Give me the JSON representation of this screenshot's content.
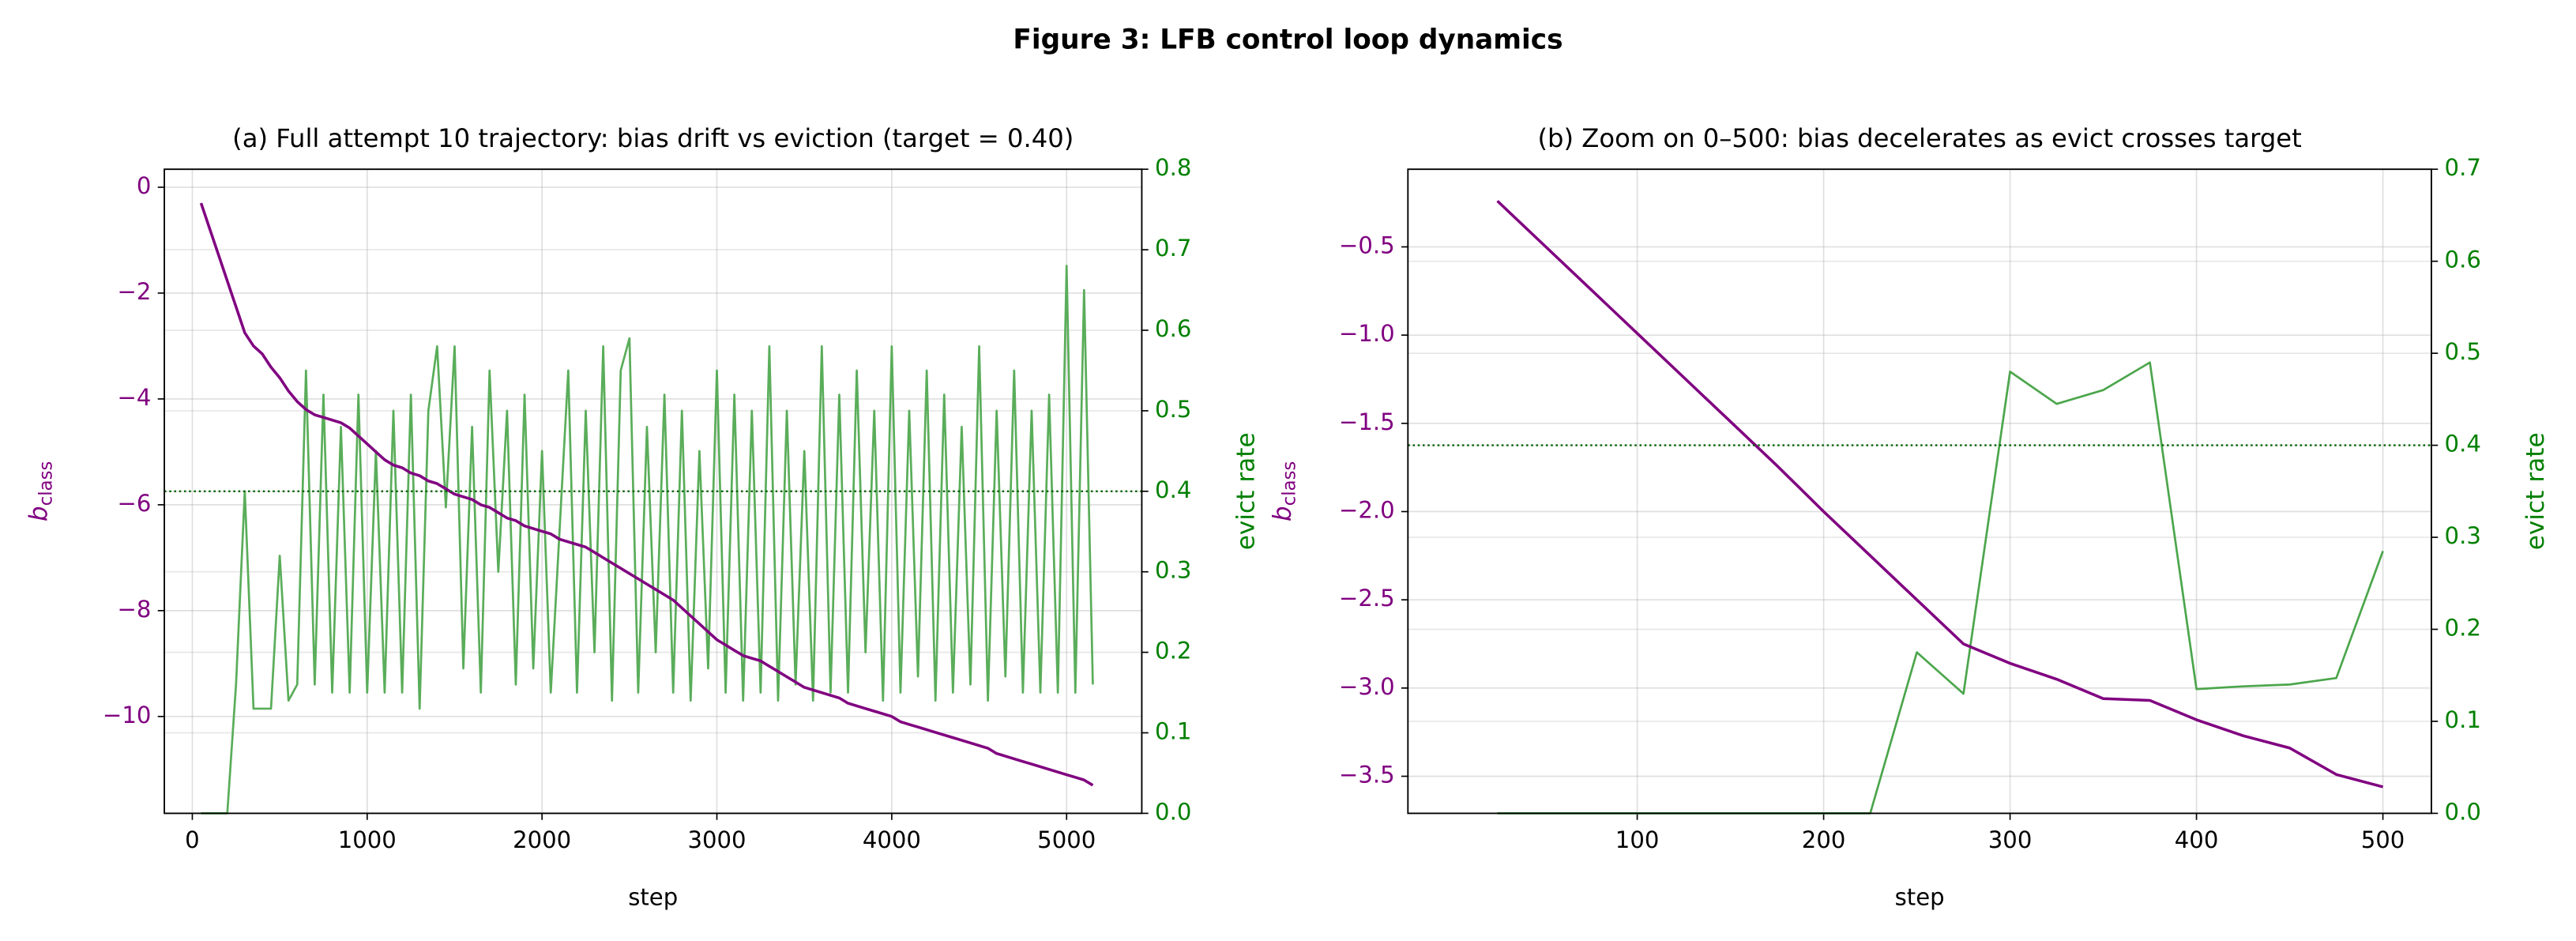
{
  "title": "Figure 3: LFB control loop dynamics",
  "chart_data": [
    {
      "type": "line",
      "title": "(a) Full attempt 10 trajectory: bias drift vs eviction (target = 0.40)",
      "xlabel": "step",
      "ylabel": "b",
      "ylabel_sub": "class",
      "y2label": "evict rate",
      "x": [
        50,
        100,
        150,
        200,
        250,
        300,
        350,
        400,
        450,
        500,
        550,
        600,
        650,
        700,
        750,
        800,
        850,
        900,
        950,
        1000,
        1050,
        1100,
        1150,
        1200,
        1250,
        1300,
        1350,
        1400,
        1450,
        1500,
        1550,
        1600,
        1650,
        1700,
        1750,
        1800,
        1850,
        1900,
        1950,
        2000,
        2050,
        2100,
        2150,
        2200,
        2250,
        2300,
        2350,
        2400,
        2450,
        2500,
        2550,
        2600,
        2650,
        2700,
        2750,
        2800,
        2850,
        2900,
        2950,
        3000,
        3050,
        3100,
        3150,
        3200,
        3250,
        3300,
        3350,
        3400,
        3450,
        3500,
        3550,
        3600,
        3650,
        3700,
        3750,
        3800,
        3850,
        3900,
        3950,
        4000,
        4050,
        4100,
        4150,
        4200,
        4250,
        4300,
        4350,
        4400,
        4450,
        4500,
        4550,
        4600,
        4650,
        4700,
        4750,
        4800,
        4850,
        4900,
        4950,
        5000,
        5050,
        5100,
        5150
      ],
      "series": [
        {
          "color": "#800080",
          "axis": "y",
          "values": [
            -0.3,
            -0.79,
            -1.28,
            -1.77,
            -2.26,
            -2.75,
            -3.0,
            -3.15,
            -3.4,
            -3.6,
            -3.85,
            -4.05,
            -4.2,
            -4.3,
            -4.35,
            -4.4,
            -4.45,
            -4.55,
            -4.7,
            -4.85,
            -5.0,
            -5.15,
            -5.25,
            -5.3,
            -5.4,
            -5.45,
            -5.55,
            -5.6,
            -5.7,
            -5.8,
            -5.85,
            -5.9,
            -6.0,
            -6.05,
            -6.15,
            -6.25,
            -6.3,
            -6.4,
            -6.45,
            -6.5,
            -6.55,
            -6.65,
            -6.7,
            -6.75,
            -6.8,
            -6.9,
            -7.0,
            -7.1,
            -7.2,
            -7.3,
            -7.4,
            -7.5,
            -7.6,
            -7.7,
            -7.8,
            -7.95,
            -8.1,
            -8.25,
            -8.4,
            -8.55,
            -8.65,
            -8.75,
            -8.85,
            -8.9,
            -8.95,
            -9.05,
            -9.15,
            -9.25,
            -9.35,
            -9.45,
            -9.5,
            -9.55,
            -9.6,
            -9.65,
            -9.75,
            -9.8,
            -9.85,
            -9.9,
            -9.95,
            -10.0,
            -10.1,
            -10.15,
            -10.2,
            -10.25,
            -10.3,
            -10.35,
            -10.4,
            -10.45,
            -10.5,
            -10.55,
            -10.6,
            -10.7,
            -10.75,
            -10.8,
            -10.85,
            -10.9,
            -10.95,
            -11.0,
            -11.05,
            -11.1,
            -11.15,
            -11.2,
            -11.3
          ]
        },
        {
          "color": "#5aad5a",
          "axis": "y2",
          "values": [
            0,
            0,
            0,
            0,
            0.16,
            0.4,
            0.13,
            0.13,
            0.13,
            0.32,
            0.14,
            0.16,
            0.55,
            0.16,
            0.52,
            0.15,
            0.48,
            0.15,
            0.52,
            0.15,
            0.45,
            0.15,
            0.5,
            0.15,
            0.52,
            0.13,
            0.5,
            0.58,
            0.38,
            0.58,
            0.18,
            0.48,
            0.15,
            0.55,
            0.3,
            0.5,
            0.16,
            0.52,
            0.18,
            0.45,
            0.15,
            0.35,
            0.55,
            0.15,
            0.5,
            0.2,
            0.58,
            0.14,
            0.55,
            0.59,
            0.15,
            0.48,
            0.2,
            0.52,
            0.15,
            0.5,
            0.14,
            0.45,
            0.18,
            0.55,
            0.15,
            0.52,
            0.14,
            0.5,
            0.15,
            0.58,
            0.14,
            0.5,
            0.16,
            0.45,
            0.14,
            0.58,
            0.15,
            0.52,
            0.15,
            0.55,
            0.2,
            0.5,
            0.14,
            0.58,
            0.15,
            0.5,
            0.17,
            0.55,
            0.14,
            0.52,
            0.15,
            0.48,
            0.16,
            0.58,
            0.14,
            0.5,
            0.17,
            0.55,
            0.15,
            0.5,
            0.15,
            0.52,
            0.15,
            0.68,
            0.15,
            0.65,
            0.16
          ]
        }
      ],
      "target": {
        "value": 0.4,
        "axis": "y2",
        "color": "#006400"
      },
      "xlim": [
        -160,
        5430
      ],
      "xticks": [
        0,
        1000,
        2000,
        3000,
        4000,
        5000
      ],
      "ylim": [
        -11.83,
        0.34
      ],
      "yticks": [
        0,
        {
          "value": -2,
          "label": "−2"
        },
        {
          "value": -4,
          "label": "−4"
        },
        {
          "value": -6,
          "label": "−6"
        },
        {
          "value": -8,
          "label": "−8"
        },
        {
          "value": -10,
          "label": "−10"
        }
      ],
      "y2lim": [
        0,
        0.8
      ],
      "y2ticks": [
        {
          "value": 0,
          "label": "0.0"
        },
        0.1,
        0.2,
        0.3,
        0.4,
        0.5,
        0.6,
        0.7,
        0.8
      ],
      "ycolor": "#800080",
      "y2color": "#008000",
      "grid": true
    },
    {
      "type": "line",
      "title": "(b) Zoom on 0–500: bias decelerates as evict crosses target",
      "xlabel": "step",
      "ylabel": "b",
      "ylabel_sub": "class",
      "y2label": "evict rate",
      "x": [
        25,
        50,
        75,
        100,
        125,
        150,
        175,
        200,
        225,
        250,
        275,
        300,
        325,
        350,
        375,
        400,
        425,
        450,
        475,
        500
      ],
      "series": [
        {
          "color": "#800080",
          "axis": "y",
          "values": [
            -0.24,
            -0.49,
            -0.74,
            -0.99,
            -1.24,
            -1.49,
            -1.74,
            -2.0,
            -2.25,
            -2.5,
            -2.75,
            -2.86,
            -2.95,
            -3.06,
            -3.07,
            -3.18,
            -3.27,
            -3.34,
            -3.49,
            -3.56
          ]
        },
        {
          "color": "#4ca64c",
          "axis": "y2",
          "values": [
            0,
            0,
            0,
            0,
            0,
            0,
            0,
            0,
            0,
            0.175,
            0.13,
            0.48,
            0.445,
            0.46,
            0.49,
            0.135,
            0.138,
            0.14,
            0.147,
            0.285
          ]
        }
      ],
      "target": {
        "value": 0.4,
        "axis": "y2",
        "color": "#006400"
      },
      "xlim": [
        -23,
        526
      ],
      "xticks": [
        100,
        200,
        300,
        400,
        500
      ],
      "ylim": [
        -3.71,
        -0.06
      ],
      "yticks": [
        {
          "value": -0.5,
          "label": "−0.5"
        },
        {
          "value": -1.0,
          "label": "−1.0"
        },
        {
          "value": -1.5,
          "label": "−1.5"
        },
        {
          "value": -2.0,
          "label": "−2.0"
        },
        {
          "value": -2.5,
          "label": "−2.5"
        },
        {
          "value": -3.0,
          "label": "−3.0"
        },
        {
          "value": -3.5,
          "label": "−3.5"
        }
      ],
      "y2lim": [
        0,
        0.7
      ],
      "y2ticks": [
        {
          "value": 0,
          "label": "0.0"
        },
        0.1,
        0.2,
        0.3,
        0.4,
        0.5,
        0.6,
        0.7
      ],
      "ycolor": "#800080",
      "y2color": "#008000",
      "grid": true
    }
  ]
}
